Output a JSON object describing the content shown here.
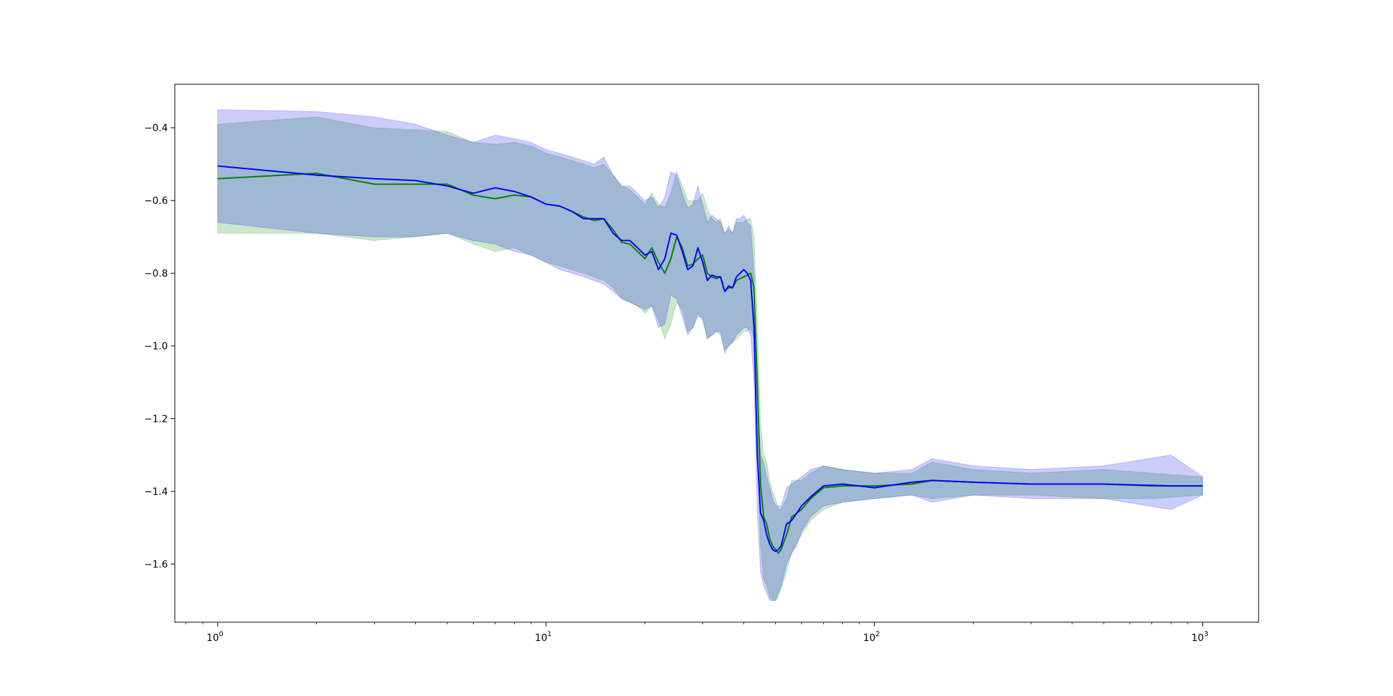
{
  "chart_data": {
    "type": "line",
    "title": "",
    "xlabel": "",
    "ylabel": "",
    "x_scale": "log",
    "xlim": [
      0.74,
      1480
    ],
    "ylim": [
      -1.76,
      -0.28
    ],
    "grid": false,
    "legend": "none",
    "x_ticks": [
      {
        "value": 1,
        "base": "10",
        "exp": "0"
      },
      {
        "value": 10,
        "base": "10",
        "exp": "1"
      },
      {
        "value": 100,
        "base": "10",
        "exp": "2"
      },
      {
        "value": 1000,
        "base": "10",
        "exp": "3"
      }
    ],
    "y_ticks": [
      {
        "value": -0.4,
        "label": "−0.4"
      },
      {
        "value": -0.6,
        "label": "−0.6"
      },
      {
        "value": -0.8,
        "label": "−0.8"
      },
      {
        "value": -1.0,
        "label": "−1.0"
      },
      {
        "value": -1.2,
        "label": "−1.2"
      },
      {
        "value": -1.4,
        "label": "−1.4"
      },
      {
        "value": -1.6,
        "label": "−1.6"
      }
    ],
    "series": [
      {
        "color": "#008000",
        "band_color": "#2ca02c",
        "band_opacity": 0.25,
        "points": [
          [
            1,
            -0.54,
            -0.69,
            -0.39
          ],
          [
            2,
            -0.525,
            -0.69,
            -0.37
          ],
          [
            3,
            -0.555,
            -0.71,
            -0.4
          ],
          [
            5,
            -0.555,
            -0.69,
            -0.41
          ],
          [
            6,
            -0.585,
            -0.72,
            -0.44
          ],
          [
            7,
            -0.595,
            -0.74,
            -0.445
          ],
          [
            8,
            -0.585,
            -0.73,
            -0.44
          ],
          [
            9,
            -0.59,
            -0.75,
            -0.45
          ],
          [
            10,
            -0.61,
            -0.77,
            -0.47
          ],
          [
            11,
            -0.615,
            -0.78,
            -0.48
          ],
          [
            12,
            -0.63,
            -0.79,
            -0.49
          ],
          [
            13,
            -0.645,
            -0.8,
            -0.5
          ],
          [
            14,
            -0.655,
            -0.81,
            -0.51
          ],
          [
            15,
            -0.65,
            -0.82,
            -0.5
          ],
          [
            16,
            -0.68,
            -0.84,
            -0.53
          ],
          [
            17,
            -0.715,
            -0.87,
            -0.56
          ],
          [
            18,
            -0.72,
            -0.88,
            -0.57
          ],
          [
            19,
            -0.74,
            -0.89,
            -0.59
          ],
          [
            20,
            -0.76,
            -0.91,
            -0.61
          ],
          [
            21,
            -0.73,
            -0.89,
            -0.58
          ],
          [
            22,
            -0.77,
            -0.93,
            -0.61
          ],
          [
            23,
            -0.8,
            -0.98,
            -0.62
          ],
          [
            24,
            -0.76,
            -0.94,
            -0.58
          ],
          [
            25,
            -0.7,
            -0.88,
            -0.52
          ],
          [
            26,
            -0.73,
            -0.9,
            -0.56
          ],
          [
            27,
            -0.78,
            -0.96,
            -0.6
          ],
          [
            28,
            -0.775,
            -0.95,
            -0.6
          ],
          [
            29,
            -0.76,
            -0.92,
            -0.6
          ],
          [
            30,
            -0.75,
            -0.92,
            -0.58
          ],
          [
            31,
            -0.8,
            -0.98,
            -0.62
          ],
          [
            32,
            -0.81,
            -0.97,
            -0.65
          ],
          [
            33,
            -0.815,
            -0.96,
            -0.66
          ],
          [
            34,
            -0.81,
            -0.97,
            -0.65
          ],
          [
            35,
            -0.85,
            -1.01,
            -0.69
          ],
          [
            36,
            -0.84,
            -1.0,
            -0.68
          ],
          [
            37,
            -0.84,
            -0.99,
            -0.69
          ],
          [
            38,
            -0.82,
            -0.98,
            -0.66
          ],
          [
            39,
            -0.815,
            -0.97,
            -0.66
          ],
          [
            40,
            -0.81,
            -0.96,
            -0.66
          ],
          [
            41,
            -0.805,
            -0.96,
            -0.65
          ],
          [
            42,
            -0.8,
            -0.95,
            -0.65
          ],
          [
            43,
            -0.84,
            -0.98,
            -0.7
          ],
          [
            44,
            -1.1,
            -1.28,
            -0.93
          ],
          [
            45,
            -1.38,
            -1.55,
            -1.21
          ],
          [
            46,
            -1.47,
            -1.64,
            -1.3
          ],
          [
            47,
            -1.49,
            -1.66,
            -1.32
          ],
          [
            48,
            -1.53,
            -1.69,
            -1.37
          ],
          [
            49,
            -1.55,
            -1.7,
            -1.4
          ],
          [
            50,
            -1.56,
            -1.7,
            -1.42
          ],
          [
            51,
            -1.57,
            -1.69,
            -1.45
          ],
          [
            52,
            -1.56,
            -1.67,
            -1.45
          ],
          [
            54,
            -1.52,
            -1.62,
            -1.42
          ],
          [
            56,
            -1.47,
            -1.57,
            -1.37
          ],
          [
            58,
            -1.46,
            -1.54,
            -1.37
          ],
          [
            60,
            -1.45,
            -1.52,
            -1.37
          ],
          [
            64,
            -1.42,
            -1.48,
            -1.35
          ],
          [
            70,
            -1.39,
            -1.45,
            -1.33
          ],
          [
            80,
            -1.385,
            -1.43,
            -1.34
          ],
          [
            100,
            -1.385,
            -1.42,
            -1.35
          ],
          [
            130,
            -1.38,
            -1.41,
            -1.35
          ],
          [
            150,
            -1.37,
            -1.42,
            -1.32
          ],
          [
            200,
            -1.375,
            -1.41,
            -1.34
          ],
          [
            300,
            -1.38,
            -1.41,
            -1.35
          ],
          [
            500,
            -1.38,
            -1.42,
            -1.34
          ],
          [
            700,
            -1.385,
            -1.42,
            -1.35
          ],
          [
            1000,
            -1.385,
            -1.41,
            -1.36
          ]
        ]
      },
      {
        "color": "#0000ff",
        "band_color": "#0000ff",
        "band_opacity": 0.2,
        "points": [
          [
            1,
            -0.505,
            -0.66,
            -0.35
          ],
          [
            2,
            -0.53,
            -0.69,
            -0.355
          ],
          [
            3,
            -0.54,
            -0.7,
            -0.37
          ],
          [
            4,
            -0.545,
            -0.7,
            -0.39
          ],
          [
            5,
            -0.56,
            -0.69,
            -0.42
          ],
          [
            6,
            -0.58,
            -0.71,
            -0.44
          ],
          [
            7,
            -0.565,
            -0.72,
            -0.42
          ],
          [
            8,
            -0.575,
            -0.74,
            -0.43
          ],
          [
            9,
            -0.59,
            -0.75,
            -0.44
          ],
          [
            10,
            -0.61,
            -0.77,
            -0.46
          ],
          [
            11,
            -0.615,
            -0.79,
            -0.47
          ],
          [
            12,
            -0.63,
            -0.8,
            -0.48
          ],
          [
            13,
            -0.65,
            -0.81,
            -0.49
          ],
          [
            14,
            -0.65,
            -0.82,
            -0.5
          ],
          [
            15,
            -0.65,
            -0.83,
            -0.48
          ],
          [
            16,
            -0.69,
            -0.85,
            -0.53
          ],
          [
            17,
            -0.71,
            -0.87,
            -0.56
          ],
          [
            18,
            -0.71,
            -0.88,
            -0.56
          ],
          [
            19,
            -0.73,
            -0.89,
            -0.58
          ],
          [
            20,
            -0.75,
            -0.9,
            -0.6
          ],
          [
            21,
            -0.74,
            -0.89,
            -0.59
          ],
          [
            22,
            -0.79,
            -0.95,
            -0.62
          ],
          [
            23,
            -0.76,
            -0.94,
            -0.59
          ],
          [
            24,
            -0.69,
            -0.86,
            -0.52
          ],
          [
            25,
            -0.695,
            -0.87,
            -0.53
          ],
          [
            26,
            -0.74,
            -0.92,
            -0.58
          ],
          [
            27,
            -0.79,
            -0.97,
            -0.62
          ],
          [
            28,
            -0.78,
            -0.95,
            -0.61
          ],
          [
            29,
            -0.73,
            -0.91,
            -0.56
          ],
          [
            30,
            -0.77,
            -0.93,
            -0.61
          ],
          [
            31,
            -0.82,
            -0.98,
            -0.66
          ],
          [
            32,
            -0.805,
            -0.97,
            -0.64
          ],
          [
            33,
            -0.81,
            -0.96,
            -0.65
          ],
          [
            34,
            -0.81,
            -0.96,
            -0.66
          ],
          [
            35,
            -0.85,
            -1.02,
            -0.69
          ],
          [
            36,
            -0.835,
            -1.0,
            -0.67
          ],
          [
            37,
            -0.84,
            -0.99,
            -0.69
          ],
          [
            38,
            -0.81,
            -0.97,
            -0.65
          ],
          [
            39,
            -0.8,
            -0.96,
            -0.65
          ],
          [
            40,
            -0.79,
            -0.95,
            -0.64
          ],
          [
            41,
            -0.8,
            -0.95,
            -0.66
          ],
          [
            42,
            -0.82,
            -0.97,
            -0.67
          ],
          [
            43,
            -0.95,
            -1.1,
            -0.8
          ],
          [
            44,
            -1.3,
            -1.45,
            -1.14
          ],
          [
            45,
            -1.46,
            -1.62,
            -1.3
          ],
          [
            46,
            -1.48,
            -1.66,
            -1.32
          ],
          [
            47,
            -1.52,
            -1.68,
            -1.36
          ],
          [
            48,
            -1.545,
            -1.7,
            -1.39
          ],
          [
            49,
            -1.56,
            -1.7,
            -1.42
          ],
          [
            50,
            -1.565,
            -1.7,
            -1.44
          ],
          [
            51,
            -1.56,
            -1.68,
            -1.44
          ],
          [
            52,
            -1.55,
            -1.66,
            -1.44
          ],
          [
            54,
            -1.49,
            -1.6,
            -1.39
          ],
          [
            56,
            -1.48,
            -1.57,
            -1.38
          ],
          [
            58,
            -1.46,
            -1.55,
            -1.37
          ],
          [
            60,
            -1.44,
            -1.51,
            -1.36
          ],
          [
            64,
            -1.415,
            -1.47,
            -1.34
          ],
          [
            70,
            -1.385,
            -1.44,
            -1.33
          ],
          [
            80,
            -1.38,
            -1.43,
            -1.34
          ],
          [
            100,
            -1.39,
            -1.42,
            -1.35
          ],
          [
            130,
            -1.375,
            -1.41,
            -1.34
          ],
          [
            150,
            -1.37,
            -1.43,
            -1.31
          ],
          [
            200,
            -1.375,
            -1.41,
            -1.33
          ],
          [
            300,
            -1.38,
            -1.42,
            -1.34
          ],
          [
            500,
            -1.38,
            -1.42,
            -1.33
          ],
          [
            800,
            -1.385,
            -1.45,
            -1.3
          ],
          [
            1000,
            -1.385,
            -1.41,
            -1.36
          ]
        ]
      }
    ]
  }
}
